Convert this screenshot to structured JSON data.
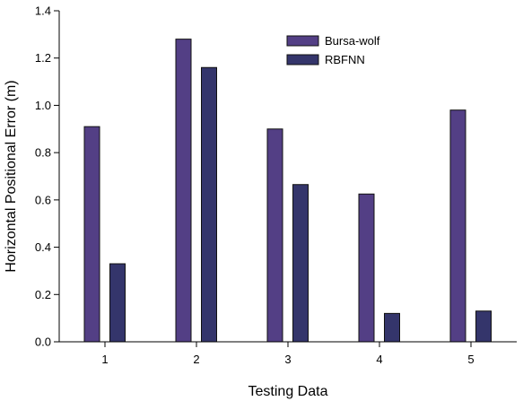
{
  "chart_data": {
    "type": "bar",
    "categories": [
      "1",
      "2",
      "3",
      "4",
      "5"
    ],
    "series": [
      {
        "name": "Bursa-wolf",
        "color": "#533f85",
        "values": [
          0.91,
          1.28,
          0.9,
          0.625,
          0.98
        ]
      },
      {
        "name": "RBFNN",
        "color": "#34356b",
        "values": [
          0.33,
          1.16,
          0.665,
          0.12,
          0.13
        ]
      }
    ],
    "xlabel": "Testing Data",
    "ylabel": "Horizontal Positional Error (m)",
    "ylim": [
      0,
      1.4
    ],
    "yticks": [
      "0.0",
      "0.2",
      "0.4",
      "0.6",
      "0.8",
      "1.0",
      "1.2",
      "1.4"
    ],
    "grid": false,
    "legend_position": "top-right"
  }
}
